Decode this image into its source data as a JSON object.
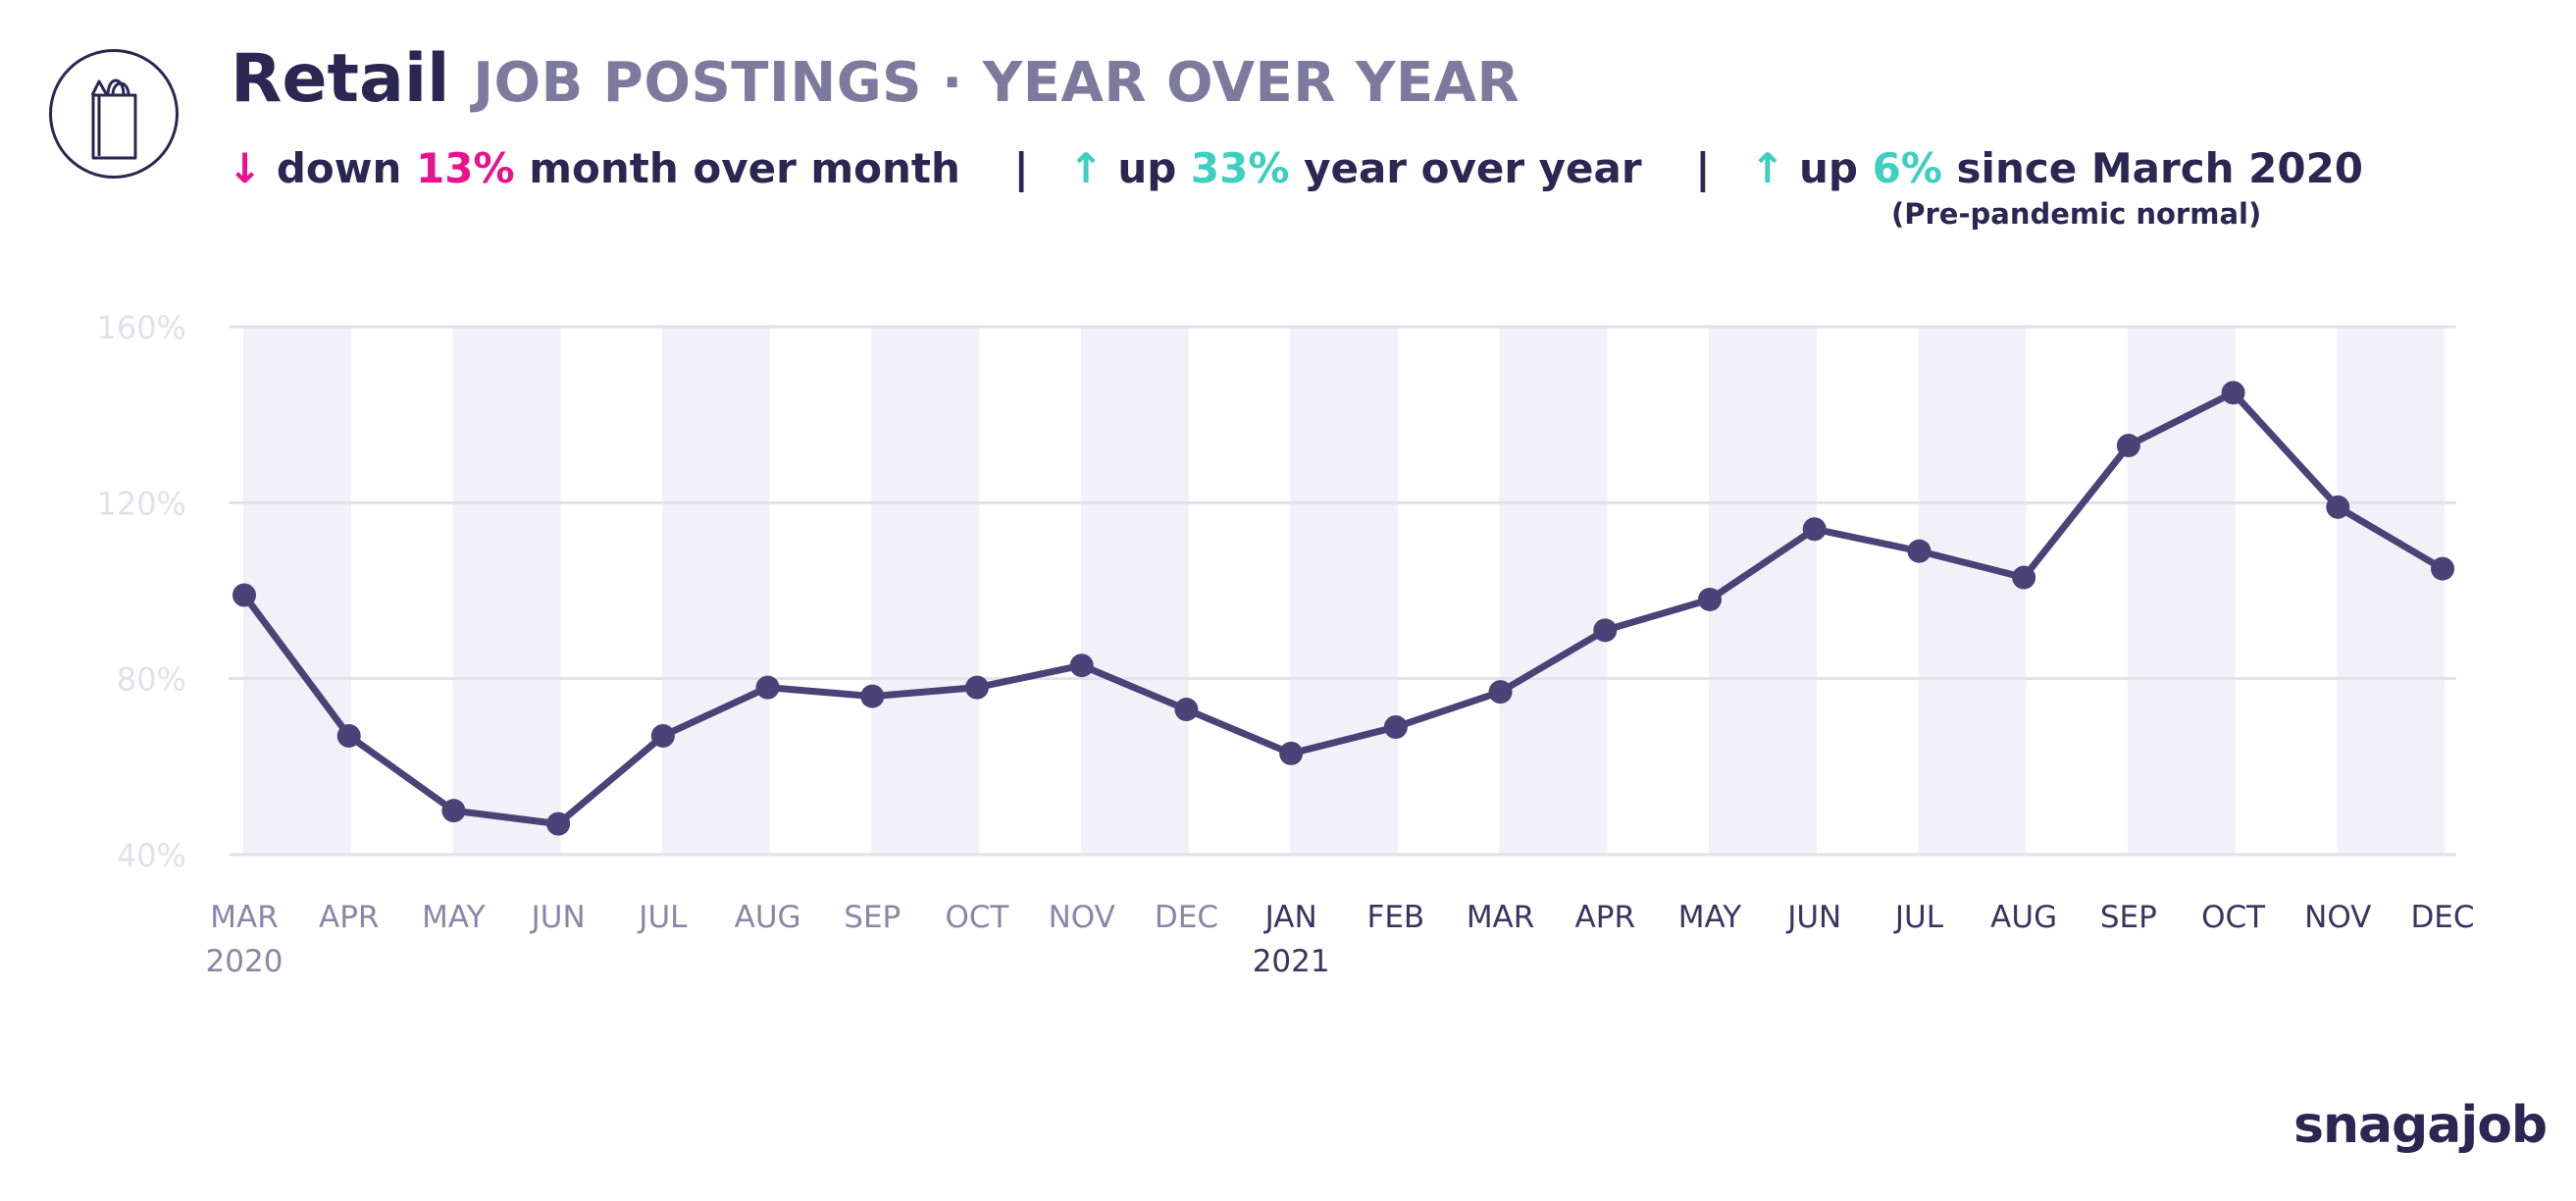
{
  "header": {
    "category": "Retail",
    "subtitle": "JOB POSTINGS · YEAR OVER YEAR",
    "logo_icon": "shopping-bag-icon"
  },
  "stats": [
    {
      "arrow": "↓",
      "direction": "down",
      "value": "13%",
      "text": "month over month",
      "color": "#e8128f"
    },
    {
      "arrow": "↑",
      "direction": "up",
      "value": "33%",
      "text": "year over year",
      "color": "#3dcfc0"
    },
    {
      "arrow": "↑",
      "direction": "up",
      "value": "6%",
      "text": "since March 2020",
      "color": "#3dcfc0"
    }
  ],
  "separator": "|",
  "note": "(Pre-pandemic normal)",
  "brand": "snagajob",
  "colors": {
    "line": "#4b4277",
    "band": "#f2f1f7",
    "grid": "#e3e1ec",
    "ytick": "#e2e0ea",
    "xtick_2020": "#8a87a6",
    "xtick_2021": "#3a3560",
    "text_dark": "#2b2652"
  },
  "chart_data": {
    "type": "line",
    "categories": [
      "MAR",
      "APR",
      "MAY",
      "JUN",
      "JUL",
      "AUG",
      "SEP",
      "OCT",
      "NOV",
      "DEC",
      "JAN",
      "FEB",
      "MAR",
      "APR",
      "MAY",
      "JUN",
      "JUL",
      "AUG",
      "SEP",
      "OCT",
      "NOV",
      "DEC"
    ],
    "year_labels": [
      {
        "index": 0,
        "label": "2020"
      },
      {
        "index": 10,
        "label": "2021"
      }
    ],
    "series": [
      {
        "values": [
          99,
          67,
          50,
          47,
          67,
          78,
          76,
          78,
          83,
          73,
          63,
          69,
          77,
          91,
          98,
          114,
          109,
          103,
          133,
          145,
          119,
          105
        ]
      }
    ],
    "yticks": [
      40,
      80,
      120,
      160
    ],
    "ytick_labels": [
      "40%",
      "80%",
      "120%",
      "160%"
    ],
    "ylim": [
      40,
      160
    ],
    "grid": true,
    "alternating_bands": true
  }
}
